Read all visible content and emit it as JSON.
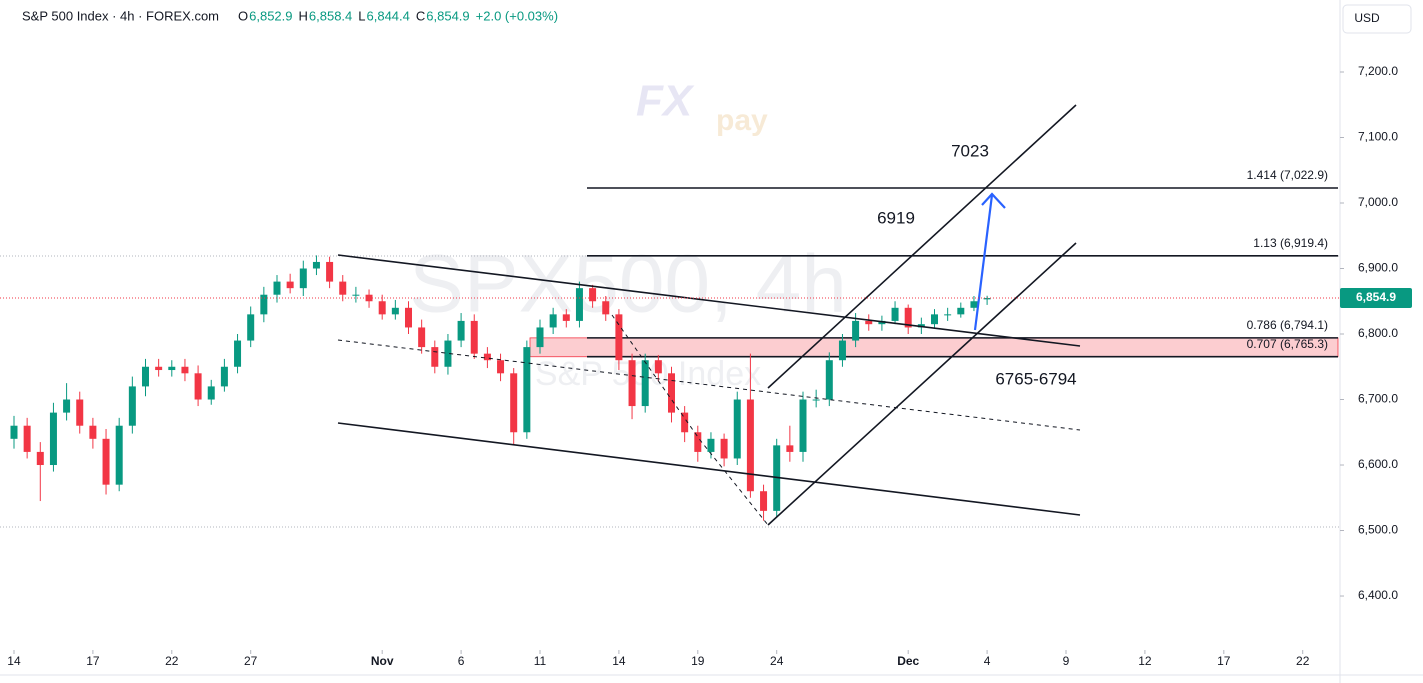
{
  "chart_data": {
    "type": "candlestick",
    "header": {
      "symbol": "S&P 500 Index · 4h · FOREX.com",
      "ohlc": [
        {
          "key": "O",
          "value": "6,852.9"
        },
        {
          "key": "H",
          "value": "6,858.4"
        },
        {
          "key": "L",
          "value": "6,844.4"
        },
        {
          "key": "C",
          "value": "6,854.9"
        }
      ],
      "change": "+2.0 (+0.03%)"
    },
    "currency": "USD",
    "watermark": {
      "ticker": "SPX500, 4h",
      "name": "S&P 500 Index"
    },
    "logo": {
      "main": "FX",
      "sub": "pay"
    },
    "x": [
      0,
      0.5,
      1,
      1.5,
      2,
      2.5,
      3,
      3.5,
      4,
      4.5,
      5,
      5.5,
      6,
      6.5,
      7,
      7.5,
      8,
      8.5,
      9,
      9.5,
      10,
      10.5,
      11,
      11.5,
      12,
      12.5,
      13,
      13.5,
      14,
      14.5,
      15,
      15.5,
      16,
      16.5,
      17,
      17.5,
      18,
      18.5,
      19,
      19.5,
      20,
      20.5,
      21,
      21.5,
      22,
      22.5,
      23,
      23.5,
      24,
      24.5,
      25,
      25.5,
      26,
      26.5,
      27,
      27.5,
      28,
      28.5,
      29,
      29.5,
      30,
      30.5,
      31,
      31.5,
      32,
      32.5,
      33,
      33.5,
      34,
      34.5,
      35,
      35.5,
      36,
      36.5,
      37
    ],
    "open": [
      6640,
      6660,
      6620,
      6600,
      6680,
      6700,
      6660,
      6640,
      6570,
      6660,
      6720,
      6750,
      6745,
      6750,
      6740,
      6700,
      6720,
      6750,
      6790,
      6830,
      6860,
      6880,
      6870,
      6900,
      6910,
      6880,
      6860,
      6860,
      6850,
      6830,
      6840,
      6810,
      6780,
      6750,
      6790,
      6820,
      6770,
      6760,
      6740,
      6650,
      6780,
      6810,
      6830,
      6820,
      6870,
      6850,
      6830,
      6760,
      6690,
      6760,
      6740,
      6680,
      6650,
      6620,
      6640,
      6610,
      6700,
      6560,
      6530,
      6630,
      6620,
      6700,
      6700,
      6760,
      6790,
      6820,
      6815,
      6820,
      6840,
      6810,
      6815,
      6830,
      6830,
      6840,
      6852.9
    ],
    "high": [
      6675,
      6672,
      6635,
      6695,
      6725,
      6712,
      6672,
      6655,
      6672,
      6735,
      6762,
      6762,
      6760,
      6762,
      6752,
      6730,
      6762,
      6800,
      6842,
      6872,
      6890,
      6892,
      6912,
      6920,
      6918,
      6890,
      6872,
      6868,
      6860,
      6852,
      6850,
      6822,
      6790,
      6800,
      6832,
      6830,
      6780,
      6770,
      6748,
      6790,
      6822,
      6840,
      6838,
      6880,
      6875,
      6858,
      6838,
      6770,
      6770,
      6768,
      6750,
      6690,
      6660,
      6650,
      6648,
      6712,
      6770,
      6570,
      6640,
      6660,
      6712,
      6715,
      6772,
      6800,
      6832,
      6830,
      6828,
      6850,
      6845,
      6825,
      6838,
      6840,
      6848,
      6858,
      6858.4
    ],
    "low": [
      6625,
      6610,
      6545,
      6590,
      6668,
      6648,
      6625,
      6555,
      6560,
      6648,
      6705,
      6735,
      6735,
      6728,
      6690,
      6692,
      6712,
      6740,
      6780,
      6818,
      6848,
      6862,
      6858,
      6890,
      6870,
      6850,
      6848,
      6840,
      6822,
      6822,
      6800,
      6770,
      6740,
      6738,
      6780,
      6762,
      6748,
      6728,
      6630,
      6640,
      6770,
      6800,
      6810,
      6810,
      6840,
      6820,
      6745,
      6670,
      6680,
      6728,
      6665,
      6635,
      6605,
      6610,
      6598,
      6600,
      6550,
      6515,
      6520,
      6605,
      6605,
      6688,
      6690,
      6750,
      6780,
      6805,
      6805,
      6815,
      6800,
      6800,
      6808,
      6820,
      6825,
      6835,
      6844.4
    ],
    "close": [
      6660,
      6620,
      6600,
      6680,
      6700,
      6660,
      6640,
      6570,
      6660,
      6720,
      6750,
      6745,
      6750,
      6740,
      6700,
      6720,
      6750,
      6790,
      6830,
      6860,
      6880,
      6870,
      6900,
      6910,
      6880,
      6860,
      6860,
      6850,
      6830,
      6840,
      6810,
      6780,
      6750,
      6790,
      6820,
      6770,
      6760,
      6740,
      6650,
      6780,
      6810,
      6830,
      6820,
      6870,
      6850,
      6830,
      6760,
      6690,
      6760,
      6740,
      6680,
      6650,
      6620,
      6640,
      6610,
      6700,
      6560,
      6530,
      6630,
      6620,
      6700,
      6700,
      6760,
      6790,
      6820,
      6815,
      6820,
      6840,
      6810,
      6815,
      6830,
      6830,
      6840,
      6850,
      6854.9
    ],
    "up_color": "#089981",
    "down_color": "#f23645",
    "xlim": [
      -0.532,
      50.418
    ],
    "xticks": [
      {
        "value": 0,
        "label": "14"
      },
      {
        "value": 3,
        "label": "17"
      },
      {
        "value": 6,
        "label": "22"
      },
      {
        "value": 9,
        "label": "27"
      },
      {
        "value": 14,
        "label": "Nov"
      },
      {
        "value": 17,
        "label": "6"
      },
      {
        "value": 20,
        "label": "11"
      },
      {
        "value": 23,
        "label": "14"
      },
      {
        "value": 26,
        "label": "19"
      },
      {
        "value": 29,
        "label": "24"
      },
      {
        "value": 34,
        "label": "Dec"
      },
      {
        "value": 37,
        "label": "4"
      },
      {
        "value": 40,
        "label": "9"
      },
      {
        "value": 43,
        "label": "12"
      },
      {
        "value": 46,
        "label": "17"
      },
      {
        "value": 49,
        "label": "22"
      }
    ],
    "ylim": [
      6317.6,
      7309.9
    ],
    "yticks": [
      {
        "value": 7200,
        "label": "7,200.0"
      },
      {
        "value": 7100,
        "label": "7,100.0"
      },
      {
        "value": 7000,
        "label": "7,000.0"
      },
      {
        "value": 6900,
        "label": "6,900.0"
      },
      {
        "value": 6800,
        "label": "6,800.0"
      },
      {
        "value": 6700,
        "label": "6,700.0"
      },
      {
        "value": 6600,
        "label": "6,600.0"
      },
      {
        "value": 6500,
        "label": "6,500.0"
      },
      {
        "value": 6400,
        "label": "6,400.0"
      }
    ],
    "last_price": {
      "value": 6854.9,
      "label": "6,854.9"
    },
    "fib_levels": [
      {
        "value": 7022.9,
        "label": "1.414 (7,022.9)"
      },
      {
        "value": 6919.4,
        "label": "1.13 (6,919.4)"
      },
      {
        "value": 6794.1,
        "label": "0.786 (6,794.1)"
      },
      {
        "value": 6765.3,
        "label": "0.707 (6,765.3)"
      }
    ],
    "annotations": [
      "7023",
      "6919",
      "6765-6794"
    ]
  }
}
